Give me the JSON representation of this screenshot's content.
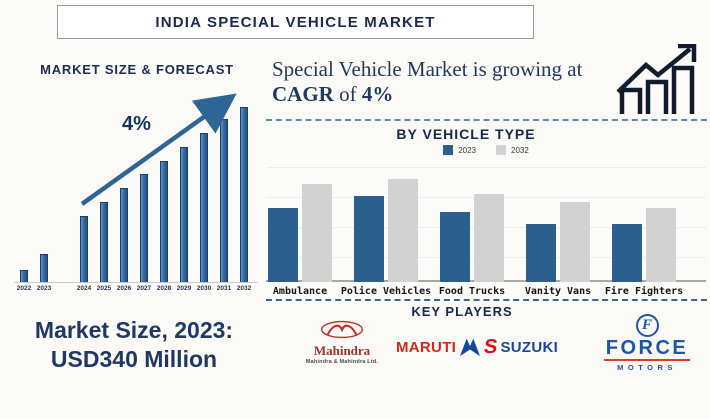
{
  "title": "INDIA SPECIAL VEHICLE MARKET",
  "forecast": {
    "heading": "MARKET SIZE & FORECAST",
    "growth_label": "4%"
  },
  "market_size": {
    "line1": "Market Size, 2023:",
    "line2": "USD340 Million"
  },
  "growth_note": {
    "plain": "Special Vehicle Market is growing at",
    "bold1": "CAGR",
    "mid": "of",
    "bold2": "4%"
  },
  "by_vehicle_type_heading": "BY VEHICLE TYPE",
  "players": {
    "heading": "KEY PLAYERS",
    "mahindra": {
      "wordmark": "Mahindra",
      "subtext": "Mahindra & Mahindra Ltd."
    },
    "maruti_suzuki": {
      "word1": "MARUTI",
      "s": "S",
      "word2": "SUZUKI"
    },
    "force": {
      "initial": "F",
      "word": "FORCE",
      "subtext": "MOTORS"
    }
  },
  "colors": {
    "navy_text": "#1b2a4f",
    "forecast_bar_blue": "#2e64a1",
    "vtype_blue": "#2b5f8e",
    "vtype_gray": "#d2d2d2",
    "arrow_blue": "#2f6496",
    "mahindra_red": "#c22a1f",
    "maruti_red": "#d8271a",
    "suzuki_blue": "#17479e",
    "force_blue": "#1c57a5"
  },
  "chart_data": [
    {
      "type": "bar",
      "title": "MARKET SIZE & FORECAST",
      "categories": [
        "2022",
        "2023",
        "2024",
        "2025",
        "2026",
        "2027",
        "2028",
        "2029",
        "2030",
        "2031",
        "2032"
      ],
      "values": [
        7,
        16,
        38,
        46,
        54,
        62,
        69,
        77,
        85,
        93,
        100
      ],
      "ylabel": "",
      "xlabel": "",
      "ylim": [
        0,
        100
      ],
      "unit": "relative height (no value axis shown)",
      "annotation": "4% growth arrow rising across 2024-2032",
      "grid": false,
      "bar_color": "#2e64a1"
    },
    {
      "type": "bar",
      "title": "BY VEHICLE TYPE",
      "categories": [
        "Ambulance",
        "Police Vehicles",
        "Food Trucks",
        "Vanity Vans",
        "Fire Fighters"
      ],
      "series": [
        {
          "name": "2023",
          "color": "#2b5f8e",
          "values": [
            62,
            72,
            58,
            48,
            48
          ]
        },
        {
          "name": "2032",
          "color": "#d2d2d2",
          "values": [
            82,
            86,
            73,
            67,
            62
          ]
        }
      ],
      "ylim": [
        0,
        100
      ],
      "unit": "relative height (no value axis shown)",
      "grid": true,
      "legend_position": "top"
    }
  ]
}
